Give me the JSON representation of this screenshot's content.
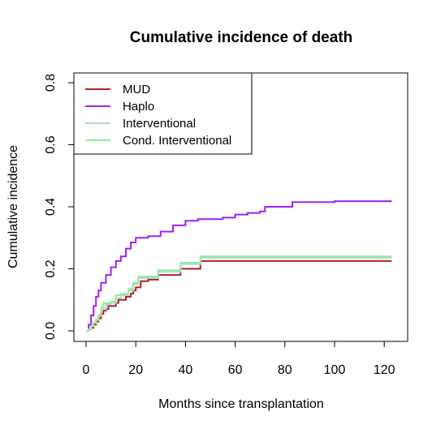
{
  "chart_data": {
    "type": "line",
    "step": true,
    "title": "Cumulative incidence of death",
    "xlabel": "Months since transplantation",
    "ylabel": "Cumulative incidence",
    "xlim": [
      0,
      125
    ],
    "ylim": [
      0,
      0.8
    ],
    "xticks": [
      "0",
      "20",
      "40",
      "60",
      "80",
      "100",
      "120"
    ],
    "yticks": [
      "0.0",
      "0.2",
      "0.4",
      "0.6",
      "0.8"
    ],
    "legend_position": "top-left",
    "series": [
      {
        "name": "MUD",
        "color": "#b22222",
        "x": [
          0,
          1,
          2,
          3,
          4,
          5,
          6,
          7,
          8,
          9,
          10,
          12,
          13,
          15,
          16,
          18,
          19,
          20,
          22,
          25,
          29,
          33,
          38,
          46,
          123
        ],
        "y": [
          0,
          0.005,
          0.01,
          0.02,
          0.03,
          0.04,
          0.055,
          0.065,
          0.07,
          0.08,
          0.08,
          0.09,
          0.1,
          0.1,
          0.11,
          0.12,
          0.13,
          0.14,
          0.16,
          0.165,
          0.18,
          0.18,
          0.2,
          0.225,
          0.225
        ]
      },
      {
        "name": "Haplo",
        "color": "#a020f0",
        "x": [
          0,
          1,
          2,
          3,
          4,
          5,
          6,
          8,
          10,
          12,
          14,
          16,
          18,
          20,
          25,
          30,
          35,
          40,
          45,
          55,
          60,
          65,
          70,
          72,
          83,
          100,
          123
        ],
        "y": [
          0,
          0.02,
          0.05,
          0.08,
          0.11,
          0.13,
          0.155,
          0.18,
          0.205,
          0.225,
          0.24,
          0.265,
          0.285,
          0.3,
          0.305,
          0.32,
          0.34,
          0.355,
          0.36,
          0.365,
          0.375,
          0.38,
          0.385,
          0.4,
          0.415,
          0.418,
          0.418
        ]
      },
      {
        "name": "Interventional",
        "color": "#add8e6",
        "x": [
          0,
          1,
          2,
          3,
          4,
          5,
          6,
          8,
          10,
          12,
          14,
          17,
          19,
          21,
          29,
          38,
          46,
          123
        ],
        "y": [
          0,
          0.005,
          0.015,
          0.025,
          0.035,
          0.05,
          0.07,
          0.085,
          0.09,
          0.105,
          0.115,
          0.13,
          0.15,
          0.17,
          0.19,
          0.215,
          0.235,
          0.235
        ]
      },
      {
        "name": "Cond. Interventional",
        "color": "#90ee90",
        "x": [
          0,
          1,
          2,
          3,
          4,
          5,
          6,
          7,
          10,
          12,
          14,
          17,
          19,
          21,
          29,
          38,
          46,
          123
        ],
        "y": [
          0,
          0.005,
          0.015,
          0.025,
          0.035,
          0.05,
          0.075,
          0.09,
          0.095,
          0.115,
          0.12,
          0.135,
          0.155,
          0.175,
          0.195,
          0.22,
          0.24,
          0.24
        ]
      }
    ]
  }
}
